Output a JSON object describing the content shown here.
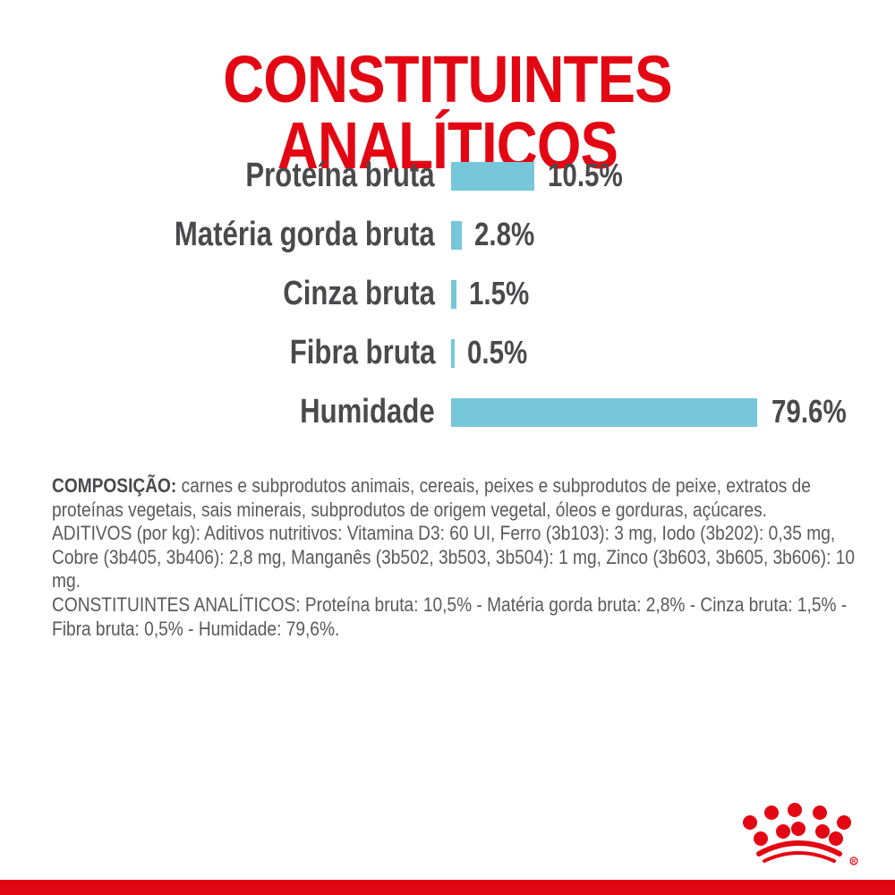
{
  "header": {
    "title": "CONSTITUINTES ANALÍTICOS"
  },
  "colors": {
    "title_red": "#e30613",
    "bar_blue": "#76c7da",
    "text_gray": "#4a4a4c",
    "bottom_bar": "#e30613"
  },
  "chart_data": {
    "type": "bar",
    "orientation": "horizontal",
    "title": "CONSTITUINTES ANALÍTICOS",
    "categories": [
      "Proteína bruta",
      "Matéria gorda bruta",
      "Cinza bruta",
      "Fibra bruta",
      "Humidade"
    ],
    "values": [
      10.5,
      2.8,
      1.5,
      0.5,
      79.6
    ],
    "value_labels": [
      "10.5%",
      "2.8%",
      "1.5%",
      "0.5%",
      "79.6%"
    ],
    "unit": "%",
    "xlabel": "",
    "ylabel": "",
    "grid": false,
    "legend": null
  },
  "composition": {
    "heading": "COMPOSIÇÃO:",
    "text": " carnes e subprodutos animais, cereais, peixes e subprodutos de peixe, extratos de proteínas vegetais, sais minerais, subprodutos de origem vegetal, óleos e gorduras, açúcares.",
    "additives": "ADITIVOS (por kg): Aditivos nutritivos: Vitamina D3: 60 UI, Ferro (3b103): 3 mg, Iodo (3b202): 0,35 mg, Cobre (3b405, 3b406): 2,8 mg, Manganês (3b502, 3b503, 3b504): 1 mg, Zinco (3b603, 3b605, 3b606): 10 mg.",
    "analytical": "CONSTITUINTES ANALÍTICOS: Proteína bruta: 10,5% - Matéria gorda bruta: 2,8% - Cinza bruta: 1,5% - Fibra bruta: 0,5% - Humidade: 79,6%."
  },
  "brand": {
    "logo": "crown-logo"
  }
}
